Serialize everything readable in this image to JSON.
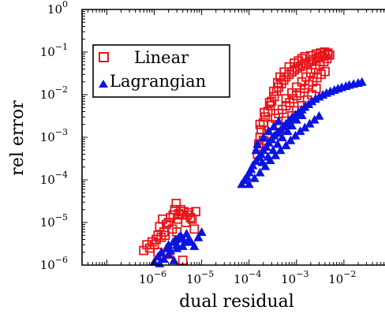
{
  "chart_data": {
    "type": "scatter",
    "x_scale": "log",
    "y_scale": "log",
    "xlim": [
      3e-08,
      0.1
    ],
    "ylim": [
      1e-06,
      1
    ],
    "xlabel": "dual residual",
    "ylabel": "rel error",
    "grid": false,
    "legend_position": "top-left",
    "x_ticks": [
      {
        "value": 1e-06,
        "base": "10",
        "exp": "−6"
      },
      {
        "value": 1e-05,
        "base": "10",
        "exp": "−5"
      },
      {
        "value": 0.0001,
        "base": "10",
        "exp": "−4"
      },
      {
        "value": 0.001,
        "base": "10",
        "exp": "−3"
      },
      {
        "value": 0.01,
        "base": "10",
        "exp": "−2"
      }
    ],
    "y_ticks": [
      {
        "value": 1e-06,
        "base": "10",
        "exp": "−6"
      },
      {
        "value": 1e-05,
        "base": "10",
        "exp": "−5"
      },
      {
        "value": 0.0001,
        "base": "10",
        "exp": "−4"
      },
      {
        "value": 0.001,
        "base": "10",
        "exp": "−3"
      },
      {
        "value": 0.01,
        "base": "10",
        "exp": "−2"
      },
      {
        "value": 0.1,
        "base": "10",
        "exp": "−1"
      },
      {
        "value": 1,
        "base": "10",
        "exp": "0"
      }
    ],
    "series": [
      {
        "name": "Linear",
        "marker": "square-open",
        "color": "#e8141a",
        "points": [
          [
            6e-07,
            2.2e-06
          ],
          [
            7e-07,
            3e-06
          ],
          [
            8e-07,
            2.5e-06
          ],
          [
            9e-07,
            3.5e-06
          ],
          [
            1e-06,
            3e-06
          ],
          [
            1.1e-06,
            4e-06
          ],
          [
            1.2e-06,
            5e-06
          ],
          [
            1.3e-06,
            8e-06
          ],
          [
            1.4e-06,
            4.5e-06
          ],
          [
            1.5e-06,
            1.2e-05
          ],
          [
            1.6e-06,
            6e-06
          ],
          [
            1.7e-06,
            5e-06
          ],
          [
            1.8e-06,
            9e-06
          ],
          [
            2e-06,
            1e-05
          ],
          [
            2.2e-06,
            1.3e-05
          ],
          [
            2.4e-06,
            7e-06
          ],
          [
            2.5e-06,
            1.5e-05
          ],
          [
            2.7e-06,
            2e-05
          ],
          [
            2.9e-06,
            2.8e-05
          ],
          [
            3.1e-06,
            1.2e-05
          ],
          [
            3.3e-06,
            1.6e-05
          ],
          [
            3.6e-06,
            2e-05
          ],
          [
            3.9e-06,
            1.5e-05
          ],
          [
            4.2e-06,
            1.8e-05
          ],
          [
            4.6e-06,
            1e-05
          ],
          [
            5e-06,
            1.5e-05
          ],
          [
            5.4e-06,
            1.7e-05
          ],
          [
            5.8e-06,
            1.3e-05
          ],
          [
            6.3e-06,
            1.2e-05
          ],
          [
            7e-06,
            7e-06
          ],
          [
            7.5e-06,
            1.8e-05
          ],
          [
            4e-06,
            1.3e-06
          ],
          [
            1.2e-06,
            2e-06
          ],
          [
            2e-06,
            1.8e-06
          ],
          [
            3e-06,
            6e-06
          ],
          [
            0.00015,
            0.0004
          ],
          [
            0.00016,
            0.0006
          ],
          [
            0.00017,
            0.001
          ],
          [
            0.00018,
            0.0015
          ],
          [
            0.0002,
            0.0022
          ],
          [
            0.00022,
            0.003
          ],
          [
            0.00025,
            0.004
          ],
          [
            0.00028,
            0.0055
          ],
          [
            0.0003,
            0.007
          ],
          [
            0.00034,
            0.009
          ],
          [
            0.00038,
            0.012
          ],
          [
            0.00042,
            0.015
          ],
          [
            0.00048,
            0.018
          ],
          [
            0.00054,
            0.022
          ],
          [
            0.0006,
            0.026
          ],
          [
            0.0007,
            0.03
          ],
          [
            0.0008,
            0.034
          ],
          [
            0.0009,
            0.038
          ],
          [
            0.00105,
            0.042
          ],
          [
            0.0012,
            0.046
          ],
          [
            0.0014,
            0.05
          ],
          [
            0.0016,
            0.055
          ],
          [
            0.0019,
            0.06
          ],
          [
            0.0022,
            0.066
          ],
          [
            0.0026,
            0.07
          ],
          [
            0.003,
            0.075
          ],
          [
            0.0035,
            0.08
          ],
          [
            0.004,
            0.085
          ],
          [
            0.0046,
            0.09
          ],
          [
            0.005,
            0.085
          ],
          [
            0.0003,
            0.002
          ],
          [
            0.00036,
            0.0028
          ],
          [
            0.00042,
            0.0036
          ],
          [
            0.0005,
            0.0045
          ],
          [
            0.0006,
            0.0055
          ],
          [
            0.00072,
            0.0065
          ],
          [
            0.00085,
            0.008
          ],
          [
            0.001,
            0.0095
          ],
          [
            0.0012,
            0.011
          ],
          [
            0.0015,
            0.014
          ],
          [
            0.0018,
            0.017
          ],
          [
            0.0022,
            0.02
          ],
          [
            0.0027,
            0.025
          ],
          [
            0.0033,
            0.03
          ],
          [
            0.004,
            0.035
          ],
          [
            0.00025,
            0.001
          ],
          [
            0.00035,
            0.0013
          ],
          [
            0.00045,
            0.0017
          ],
          [
            0.0006,
            0.0024
          ],
          [
            0.0008,
            0.0032
          ],
          [
            0.001,
            0.0042
          ],
          [
            0.0013,
            0.0055
          ],
          [
            0.0017,
            0.0075
          ],
          [
            0.0021,
            0.01
          ],
          [
            0.0026,
            0.014
          ],
          [
            0.00016,
            0.0007
          ],
          [
            0.0002,
            0.00085
          ],
          [
            0.00024,
            0.0012
          ],
          [
            0.00017,
            0.002
          ],
          [
            0.00021,
            0.0038
          ],
          [
            0.00027,
            0.0065
          ],
          [
            0.00033,
            0.012
          ],
          [
            0.0004,
            0.019
          ],
          [
            0.00045,
            0.026
          ],
          [
            0.00055,
            0.034
          ],
          [
            0.0007,
            0.045
          ],
          [
            0.0009,
            0.055
          ],
          [
            0.0011,
            0.062
          ],
          [
            0.0013,
            0.07
          ],
          [
            0.0015,
            0.078
          ],
          [
            0.002,
            0.082
          ],
          [
            0.0026,
            0.09
          ],
          [
            0.0032,
            0.095
          ],
          [
            0.0039,
            0.1
          ],
          [
            0.0046,
            0.095
          ],
          [
            0.0006,
            0.008
          ],
          [
            0.0008,
            0.011
          ],
          [
            0.001,
            0.015
          ],
          [
            0.0013,
            0.02
          ],
          [
            0.0016,
            0.026
          ],
          [
            0.002,
            0.033
          ],
          [
            0.0025,
            0.04
          ],
          [
            0.0031,
            0.05
          ],
          [
            0.0038,
            0.06
          ],
          [
            0.0044,
            0.07
          ]
        ]
      },
      {
        "name": "Lagrangian",
        "marker": "triangle-filled",
        "color": "#0a14e0",
        "points": [
          [
            1e-06,
            1.2e-06
          ],
          [
            1.2e-06,
            1.6e-06
          ],
          [
            1.4e-06,
            2e-06
          ],
          [
            1.6e-06,
            1.4e-06
          ],
          [
            1.8e-06,
            2.5e-06
          ],
          [
            2e-06,
            3e-06
          ],
          [
            2.2e-06,
            2.2e-06
          ],
          [
            2.5e-06,
            3.5e-06
          ],
          [
            2.8e-06,
            4e-06
          ],
          [
            3e-06,
            3e-06
          ],
          [
            3.3e-06,
            4.5e-06
          ],
          [
            3.6e-06,
            5e-06
          ],
          [
            4e-06,
            4.2e-06
          ],
          [
            4.4e-06,
            3.5e-06
          ],
          [
            4.8e-06,
            5.5e-06
          ],
          [
            5.3e-06,
            4e-06
          ],
          [
            6e-06,
            3.5e-06
          ],
          [
            7e-06,
            2.8e-06
          ],
          [
            8.5e-06,
            4.5e-06
          ],
          [
            1e-05,
            6e-06
          ],
          [
            1.3e-06,
            1.1e-06
          ],
          [
            2e-06,
            1.8e-06
          ],
          [
            3e-06,
            2.5e-06
          ],
          [
            4e-06,
            2.8e-06
          ],
          [
            2.6e-06,
            1.3e-06
          ],
          [
            7e-05,
            8e-05
          ],
          [
            8e-05,
            0.0001
          ],
          [
            9e-05,
            0.00012
          ],
          [
            0.0001,
            0.00015
          ],
          [
            0.00011,
            0.00018
          ],
          [
            0.00012,
            0.00022
          ],
          [
            0.00014,
            0.00028
          ],
          [
            0.00016,
            0.00034
          ],
          [
            0.00018,
            0.0004
          ],
          [
            0.0002,
            0.0005
          ],
          [
            0.00023,
            0.0006
          ],
          [
            0.00026,
            0.00075
          ],
          [
            0.0003,
            0.0009
          ],
          [
            0.00034,
            0.0011
          ],
          [
            0.0004,
            0.0013
          ],
          [
            0.00046,
            0.0015
          ],
          [
            0.00053,
            0.0018
          ],
          [
            0.0006,
            0.0021
          ],
          [
            0.0007,
            0.0025
          ],
          [
            0.0008,
            0.0029
          ],
          [
            0.00095,
            0.0034
          ],
          [
            0.0011,
            0.0039
          ],
          [
            0.0013,
            0.0045
          ],
          [
            0.0015,
            0.0052
          ],
          [
            0.0018,
            0.006
          ],
          [
            0.0021,
            0.007
          ],
          [
            0.0025,
            0.008
          ],
          [
            0.003,
            0.009
          ],
          [
            0.0036,
            0.01
          ],
          [
            0.0043,
            0.011
          ],
          [
            0.0052,
            0.012
          ],
          [
            0.0063,
            0.013
          ],
          [
            0.0075,
            0.014
          ],
          [
            0.009,
            0.015
          ],
          [
            0.011,
            0.016
          ],
          [
            0.013,
            0.017
          ],
          [
            0.016,
            0.018
          ],
          [
            0.02,
            0.019
          ],
          [
            0.024,
            0.02
          ],
          [
            0.0001,
            8e-05
          ],
          [
            0.00013,
            0.00011
          ],
          [
            0.00017,
            0.00015
          ],
          [
            0.00022,
            0.00021
          ],
          [
            0.00028,
            0.00029
          ],
          [
            0.00036,
            0.00038
          ],
          [
            0.00046,
            0.0005
          ],
          [
            0.0006,
            0.00065
          ],
          [
            0.00075,
            0.00085
          ],
          [
            0.00095,
            0.0011
          ],
          [
            0.0012,
            0.0014
          ],
          [
            0.0015,
            0.0017
          ],
          [
            0.0019,
            0.0021
          ],
          [
            0.0024,
            0.0026
          ],
          [
            0.003,
            0.0032
          ],
          [
            0.00015,
            0.0007
          ],
          [
            0.0002,
            0.001
          ],
          [
            0.00026,
            0.0014
          ],
          [
            0.00033,
            0.0018
          ],
          [
            0.00042,
            0.0024
          ],
          [
            0.00014,
            0.0005
          ],
          [
            0.00019,
            0.00026
          ],
          [
            0.00025,
            0.00035
          ],
          [
            0.00032,
            0.0005
          ],
          [
            0.0004,
            0.0007
          ],
          [
            0.0005,
            0.001
          ],
          [
            0.00065,
            0.0014
          ],
          [
            0.0008,
            0.0019
          ],
          [
            0.001,
            0.0026
          ],
          [
            0.0013,
            0.0033
          ]
        ]
      }
    ]
  }
}
